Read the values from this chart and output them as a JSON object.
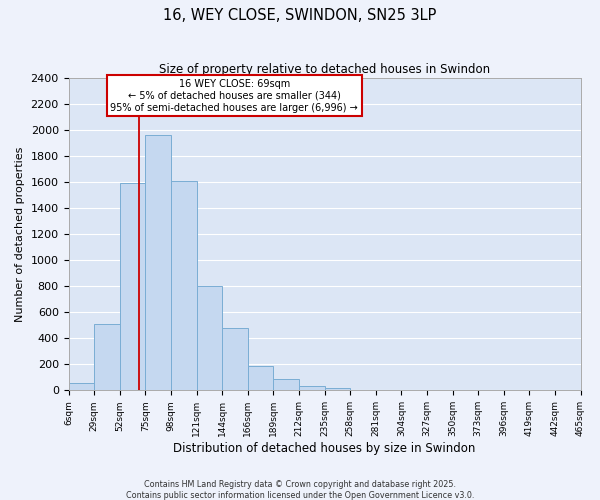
{
  "title": "16, WEY CLOSE, SWINDON, SN25 3LP",
  "subtitle": "Size of property relative to detached houses in Swindon",
  "xlabel": "Distribution of detached houses by size in Swindon",
  "ylabel": "Number of detached properties",
  "bar_color": "#c5d8f0",
  "bar_edge_color": "#7aadd4",
  "background_color": "#dce6f5",
  "grid_color": "#ffffff",
  "bin_edges": [
    6,
    29,
    52,
    75,
    98,
    121,
    144,
    167,
    190,
    213,
    236,
    259,
    282,
    305,
    328,
    351,
    374,
    397,
    420,
    443,
    466
  ],
  "bin_labels": [
    "6sqm",
    "29sqm",
    "52sqm",
    "75sqm",
    "98sqm",
    "121sqm",
    "144sqm",
    "166sqm",
    "189sqm",
    "212sqm",
    "235sqm",
    "258sqm",
    "281sqm",
    "304sqm",
    "327sqm",
    "350sqm",
    "373sqm",
    "396sqm",
    "419sqm",
    "442sqm",
    "465sqm"
  ],
  "counts": [
    55,
    510,
    1590,
    1960,
    1610,
    800,
    480,
    190,
    90,
    30,
    15,
    5,
    2,
    0,
    0,
    0,
    0,
    0,
    5,
    0
  ],
  "ylim": [
    0,
    2400
  ],
  "yticks": [
    0,
    200,
    400,
    600,
    800,
    1000,
    1200,
    1400,
    1600,
    1800,
    2000,
    2200,
    2400
  ],
  "vline_x": 69,
  "vline_color": "#cc0000",
  "annotation_title": "16 WEY CLOSE: 69sqm",
  "annotation_line1": "← 5% of detached houses are smaller (344)",
  "annotation_line2": "95% of semi-detached houses are larger (6,996) →",
  "annotation_box_color": "#ffffff",
  "annotation_box_edge": "#cc0000",
  "footer1": "Contains HM Land Registry data © Crown copyright and database right 2025.",
  "footer2": "Contains public sector information licensed under the Open Government Licence v3.0."
}
